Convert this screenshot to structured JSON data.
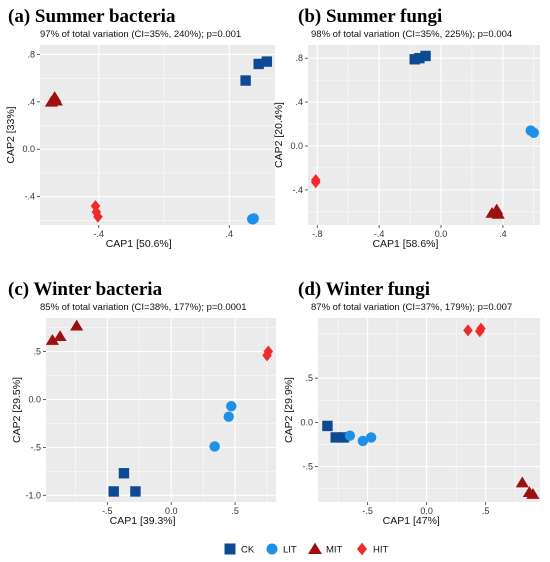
{
  "legend": [
    {
      "key": "CK",
      "label": "CK",
      "shape": "square",
      "color": "#0d4a94"
    },
    {
      "key": "LIT",
      "label": "LIT",
      "shape": "circle",
      "color": "#1e90e8"
    },
    {
      "key": "MIT",
      "label": "MIT",
      "shape": "triangle",
      "color": "#9e0f0f"
    },
    {
      "key": "HIT",
      "label": "HIT",
      "shape": "diamond",
      "color": "#ee2c2c"
    }
  ],
  "chart_data": [
    {
      "type": "scatter",
      "title": "(a) Summer bacteria",
      "subtitle": "97% of total variation (CI=35%, 240%); p=0.001",
      "xlabel": "CAP1   [50.6%]",
      "ylabel": "CAP2   [33%]",
      "xlim": [
        -0.76,
        0.68
      ],
      "ylim": [
        -0.64,
        0.88
      ],
      "xticks": [
        -0.4,
        0.4
      ],
      "yticks": [
        -0.4,
        0.0,
        0.4,
        0.8
      ],
      "series": [
        {
          "key": "CK",
          "points": [
            [
              0.5,
              0.58
            ],
            [
              0.58,
              0.72
            ],
            [
              0.63,
              0.74
            ]
          ]
        },
        {
          "key": "LIT",
          "points": [
            [
              0.54,
              -0.59
            ],
            [
              0.55,
              -0.585
            ],
            [
              0.545,
              -0.592
            ]
          ]
        },
        {
          "key": "MIT",
          "points": [
            [
              -0.69,
              0.4
            ],
            [
              -0.67,
              0.44
            ],
            [
              -0.66,
              0.41
            ]
          ]
        },
        {
          "key": "HIT",
          "points": [
            [
              -0.42,
              -0.48
            ],
            [
              -0.415,
              -0.53
            ],
            [
              -0.405,
              -0.57
            ]
          ]
        }
      ]
    },
    {
      "type": "scatter",
      "title": "(b) Summer fungi",
      "subtitle": "98% of total variation  (CI=35%, 225%); p=0.004",
      "xlabel": "CAP1   [58.6%]",
      "ylabel": "CAP2   [20.4%]",
      "xlim": [
        -0.86,
        0.64
      ],
      "ylim": [
        -0.72,
        0.92
      ],
      "xticks": [
        -0.8,
        -0.4,
        0.0,
        0.4
      ],
      "yticks": [
        -0.4,
        0.0,
        0.4,
        0.8
      ],
      "series": [
        {
          "key": "CK",
          "points": [
            [
              -0.17,
              0.79
            ],
            [
              -0.14,
              0.8
            ],
            [
              -0.1,
              0.82
            ]
          ]
        },
        {
          "key": "LIT",
          "points": [
            [
              0.58,
              0.14
            ],
            [
              0.6,
              0.12
            ]
          ]
        },
        {
          "key": "MIT",
          "points": [
            [
              0.33,
              -0.61
            ],
            [
              0.36,
              -0.58
            ],
            [
              0.37,
              -0.62
            ]
          ]
        },
        {
          "key": "HIT",
          "points": [
            [
              -0.81,
              -0.31
            ],
            [
              -0.81,
              -0.33
            ]
          ]
        }
      ]
    },
    {
      "type": "scatter",
      "title": "(c) Winter bacteria",
      "subtitle": "85% of total variation (CI=38%, 177%); p=0.0001",
      "xlabel": "CAP1   [39.3%]",
      "ylabel": "CAP2   [29.5%]",
      "xlim": [
        -0.98,
        0.82
      ],
      "ylim": [
        -1.07,
        0.85
      ],
      "xticks": [
        -0.5,
        0.0,
        0.5
      ],
      "yticks": [
        -1.0,
        -0.5,
        0.0,
        0.5
      ],
      "series": [
        {
          "key": "CK",
          "points": [
            [
              -0.45,
              -0.96
            ],
            [
              -0.37,
              -0.77
            ],
            [
              -0.28,
              -0.96
            ]
          ]
        },
        {
          "key": "LIT",
          "points": [
            [
              0.34,
              -0.49
            ],
            [
              0.45,
              -0.18
            ],
            [
              0.47,
              -0.07
            ]
          ]
        },
        {
          "key": "MIT",
          "points": [
            [
              -0.93,
              0.62
            ],
            [
              -0.87,
              0.66
            ],
            [
              -0.74,
              0.77
            ]
          ]
        },
        {
          "key": "HIT",
          "points": [
            [
              0.75,
              0.46
            ],
            [
              0.76,
              0.5
            ]
          ]
        }
      ]
    },
    {
      "type": "scatter",
      "title": "(d) Winter fungi",
      "subtitle": "87% of total variation (CI=37%, 179%); p=0.007",
      "xlabel": "CAP1   [47%]",
      "ylabel": "CAP2   [29.9%]",
      "xlim": [
        -0.92,
        0.96
      ],
      "ylim": [
        -0.9,
        1.18
      ],
      "xticks": [
        -0.5,
        0.0,
        0.5
      ],
      "yticks": [
        -0.5,
        0.0,
        0.5
      ],
      "series": [
        {
          "key": "CK",
          "points": [
            [
              -0.84,
              -0.04
            ],
            [
              -0.77,
              -0.17
            ],
            [
              -0.7,
              -0.17
            ]
          ]
        },
        {
          "key": "LIT",
          "points": [
            [
              -0.65,
              -0.15
            ],
            [
              -0.54,
              -0.21
            ],
            [
              -0.47,
              -0.17
            ]
          ]
        },
        {
          "key": "MIT",
          "points": [
            [
              0.81,
              -0.68
            ],
            [
              0.87,
              -0.79
            ],
            [
              0.9,
              -0.81
            ]
          ]
        },
        {
          "key": "HIT",
          "points": [
            [
              0.35,
              1.04
            ],
            [
              0.45,
              1.03
            ],
            [
              0.46,
              1.06
            ]
          ]
        }
      ]
    }
  ]
}
